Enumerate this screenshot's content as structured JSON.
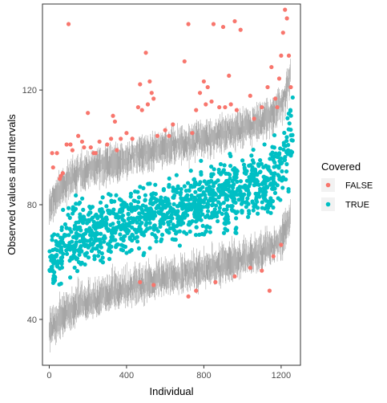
{
  "chart_data": {
    "type": "scatter",
    "xlabel": "Individual",
    "ylabel": "Observed values and Intervals",
    "xlim": [
      -35,
      1300
    ],
    "ylim": [
      24,
      150
    ],
    "xticks": [
      0,
      400,
      800,
      1200
    ],
    "yticks": [
      40,
      80,
      120
    ],
    "xtick_labels": [
      "0",
      "400",
      "800",
      "1200"
    ],
    "ytick_labels": [
      "40",
      "80",
      "120"
    ],
    "grid": false,
    "interval_color": "#a6a6a6",
    "n_individuals": 1250,
    "lower_bound_curve": {
      "x": [
        0,
        60,
        150,
        300,
        450,
        600,
        750,
        900,
        1050,
        1150,
        1200,
        1230,
        1250
      ],
      "y": [
        32,
        37,
        41,
        45,
        48,
        50.5,
        52.5,
        55,
        58,
        61,
        64,
        68,
        73
      ]
    },
    "upper_bound_curve": {
      "x": [
        0,
        60,
        150,
        300,
        450,
        600,
        750,
        900,
        1050,
        1150,
        1200,
        1230,
        1250
      ],
      "y": [
        83,
        90,
        95,
        98.5,
        101,
        104,
        106,
        108.5,
        112,
        115,
        119,
        124,
        131
      ]
    },
    "legend": {
      "title": "Covered",
      "position": "right",
      "entries": [
        {
          "label": "FALSE",
          "color": "#f8766d"
        },
        {
          "label": "TRUE",
          "color": "#00bfc4"
        }
      ]
    },
    "series": [
      {
        "name": "FALSE",
        "color": "#f8766d",
        "x": [
          15,
          20,
          40,
          55,
          60,
          70,
          90,
          100,
          110,
          150,
          170,
          180,
          200,
          215,
          230,
          260,
          300,
          330,
          340,
          350,
          370,
          400,
          430,
          460,
          470,
          480,
          500,
          510,
          520,
          530,
          540,
          560,
          600,
          620,
          640,
          700,
          720,
          740,
          760,
          780,
          800,
          810,
          820,
          840,
          850,
          880,
          900,
          910,
          930,
          940,
          960,
          970,
          990,
          1040,
          1060,
          1100,
          1130,
          1150,
          1170,
          1180,
          1190,
          1200,
          1210,
          1220,
          1230,
          1240,
          1250,
          470,
          540,
          720,
          760,
          860,
          960,
          1040,
          1100,
          1140,
          1160,
          1200,
          120,
          240,
          320
        ],
        "y": [
          98,
          93,
          98,
          89,
          90,
          91,
          101,
          143,
          101,
          104,
          102,
          100,
          112,
          100,
          98,
          102,
          101,
          111,
          109,
          99,
          103,
          105,
          103,
          114,
          122,
          113,
          133,
          115,
          123,
          119,
          117,
          104,
          106,
          104,
          108,
          130,
          143,
          105,
          113,
          119,
          123,
          115,
          121,
          116,
          143,
          114,
          142,
          114,
          125,
          115,
          144,
          113,
          141,
          118,
          110,
          114,
          121,
          128,
          117,
          114,
          124,
          132,
          140,
          148,
          145,
          132,
          121,
          53,
          52,
          48,
          50,
          53,
          55,
          58,
          57,
          50,
          62,
          66,
          99,
          98,
          103
        ]
      },
      {
        "name": "TRUE",
        "color": "#00bfc4",
        "generated": true,
        "x_range": [
          0,
          1260
        ],
        "count": 1250
      }
    ]
  }
}
